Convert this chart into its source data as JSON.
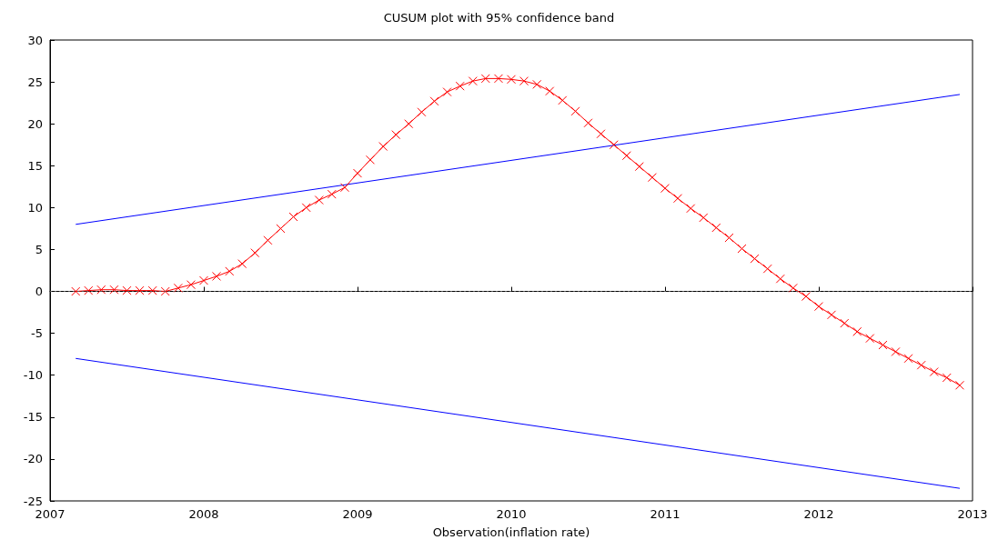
{
  "chart_data": {
    "type": "line",
    "title": "CUSUM plot with 95% confidence band",
    "xlabel": "Observation(inflation rate)",
    "xlim": [
      2007,
      2013
    ],
    "xticks": [
      2007,
      2008,
      2009,
      2010,
      2011,
      2012,
      2013
    ],
    "ylim": [
      -25,
      30
    ],
    "yticks": [
      -25,
      -20,
      -15,
      -10,
      -5,
      0,
      5,
      10,
      15,
      20,
      25,
      30
    ],
    "grid": false,
    "series": [
      {
        "color": "#ff0000",
        "marker": "cross",
        "x": [
          2007.167,
          2007.25,
          2007.333,
          2007.417,
          2007.5,
          2007.583,
          2007.667,
          2007.75,
          2007.833,
          2007.917,
          2008.0,
          2008.083,
          2008.167,
          2008.25,
          2008.333,
          2008.417,
          2008.5,
          2008.583,
          2008.667,
          2008.75,
          2008.833,
          2008.917,
          2009.0,
          2009.083,
          2009.167,
          2009.25,
          2009.333,
          2009.417,
          2009.5,
          2009.583,
          2009.667,
          2009.75,
          2009.833,
          2009.917,
          2010.0,
          2010.083,
          2010.167,
          2010.25,
          2010.333,
          2010.417,
          2010.5,
          2010.583,
          2010.667,
          2010.75,
          2010.833,
          2010.917,
          2011.0,
          2011.083,
          2011.167,
          2011.25,
          2011.333,
          2011.417,
          2011.5,
          2011.583,
          2011.667,
          2011.75,
          2011.833,
          2011.917,
          2012.0,
          2012.083,
          2012.167,
          2012.25,
          2012.333,
          2012.417,
          2012.5,
          2012.583,
          2012.667,
          2012.75,
          2012.833,
          2012.917
        ],
        "values": [
          0,
          0.1,
          0.2,
          0.2,
          0.1,
          0.1,
          0.1,
          0,
          0.4,
          0.8,
          1.3,
          1.8,
          2.4,
          3.3,
          4.6,
          6.1,
          7.5,
          8.9,
          10.0,
          10.9,
          11.6,
          12.4,
          14.1,
          15.7,
          17.3,
          18.7,
          20.0,
          21.4,
          22.7,
          23.8,
          24.5,
          25.1,
          25.4,
          25.4,
          25.3,
          25.1,
          24.7,
          23.9,
          22.8,
          21.5,
          20.1,
          18.8,
          17.5,
          16.2,
          14.9,
          13.6,
          12.3,
          11.1,
          9.9,
          8.8,
          7.6,
          6.4,
          5.1,
          3.9,
          2.7,
          1.5,
          0.4,
          -0.6,
          -1.8,
          -2.8,
          -3.8,
          -4.8,
          -5.6,
          -6.4,
          -7.2,
          -8.0,
          -8.8,
          -9.6,
          -10.3,
          -11.2
        ]
      },
      {
        "color": "#0000ff",
        "marker": "none",
        "x": [
          2007.167,
          2012.917
        ],
        "values": [
          8,
          23.5
        ]
      },
      {
        "color": "#0000ff",
        "marker": "none",
        "x": [
          2007.167,
          2012.917
        ],
        "values": [
          -8,
          -23.5
        ]
      }
    ],
    "ref_lines": [
      {
        "axis": "y",
        "value": 0,
        "color": "#555555",
        "line_style": "dotted"
      }
    ]
  }
}
